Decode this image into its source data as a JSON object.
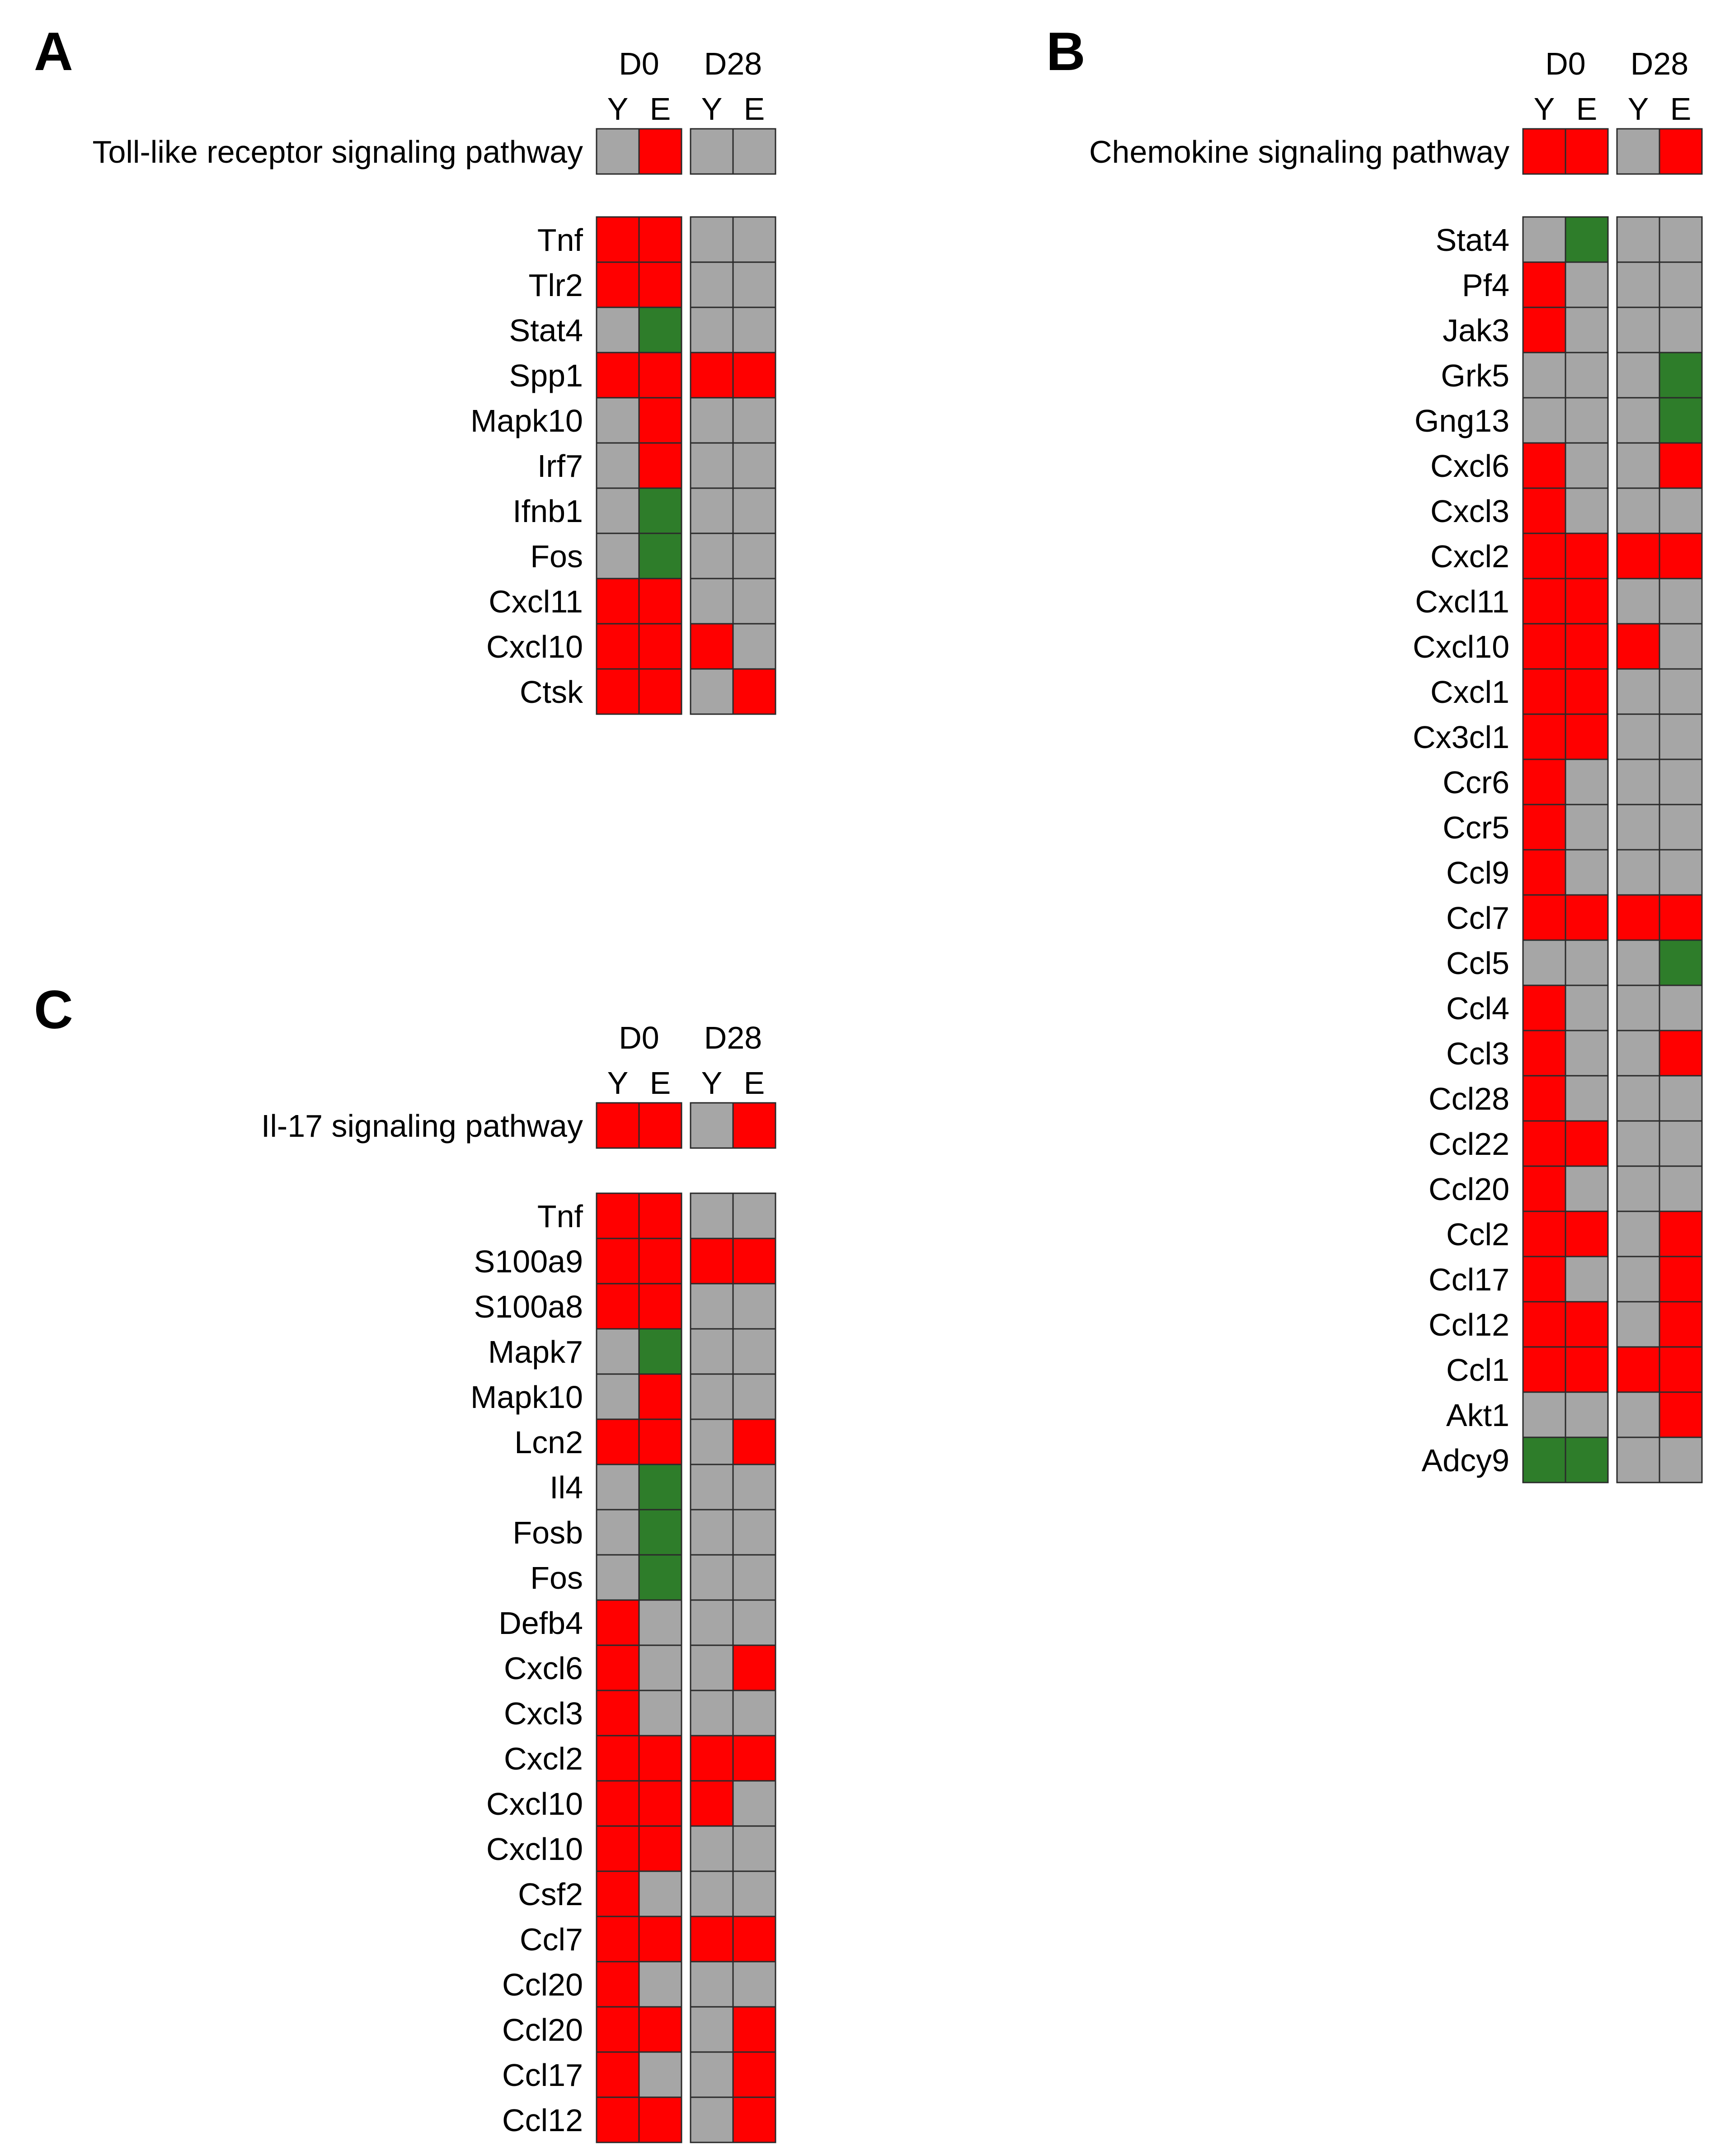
{
  "colors": {
    "up": "#ff0000",
    "down": "#2e7d2a",
    "none": "#a6a6a6",
    "border": "#2a2a2a"
  },
  "chart_data": [
    {
      "type": "heatmap",
      "panel": "A",
      "groups": [
        "D0",
        "D28"
      ],
      "columns": [
        "Y",
        "E"
      ],
      "pathway": {
        "name": "Toll-like  receptor signaling pathway",
        "values": [
          "none",
          "up",
          "none",
          "none"
        ]
      },
      "rows": [
        {
          "gene": "Tnf",
          "values": [
            "up",
            "up",
            "none",
            "none"
          ]
        },
        {
          "gene": "Tlr2",
          "values": [
            "up",
            "up",
            "none",
            "none"
          ]
        },
        {
          "gene": "Stat4",
          "values": [
            "none",
            "down",
            "none",
            "none"
          ]
        },
        {
          "gene": "Spp1",
          "values": [
            "up",
            "up",
            "up",
            "up"
          ]
        },
        {
          "gene": "Mapk10",
          "values": [
            "none",
            "up",
            "none",
            "none"
          ]
        },
        {
          "gene": "Irf7",
          "values": [
            "none",
            "up",
            "none",
            "none"
          ]
        },
        {
          "gene": "Ifnb1",
          "values": [
            "none",
            "down",
            "none",
            "none"
          ]
        },
        {
          "gene": "Fos",
          "values": [
            "none",
            "down",
            "none",
            "none"
          ]
        },
        {
          "gene": "Cxcl11",
          "values": [
            "up",
            "up",
            "none",
            "none"
          ]
        },
        {
          "gene": "Cxcl10",
          "values": [
            "up",
            "up",
            "up",
            "none"
          ]
        },
        {
          "gene": "Ctsk",
          "values": [
            "up",
            "up",
            "none",
            "up"
          ]
        }
      ]
    },
    {
      "type": "heatmap",
      "panel": "B",
      "groups": [
        "D0",
        "D28"
      ],
      "columns": [
        "Y",
        "E"
      ],
      "pathway": {
        "name": "Chemokine signaling pathway",
        "values": [
          "up",
          "up",
          "none",
          "up"
        ]
      },
      "rows": [
        {
          "gene": "Stat4",
          "values": [
            "none",
            "down",
            "none",
            "none"
          ]
        },
        {
          "gene": "Pf4",
          "values": [
            "up",
            "none",
            "none",
            "none"
          ]
        },
        {
          "gene": "Jak3",
          "values": [
            "up",
            "none",
            "none",
            "none"
          ]
        },
        {
          "gene": "Grk5",
          "values": [
            "none",
            "none",
            "none",
            "down"
          ]
        },
        {
          "gene": "Gng13",
          "values": [
            "none",
            "none",
            "none",
            "down"
          ]
        },
        {
          "gene": "Cxcl6",
          "values": [
            "up",
            "none",
            "none",
            "up"
          ]
        },
        {
          "gene": "Cxcl3",
          "values": [
            "up",
            "none",
            "none",
            "none"
          ]
        },
        {
          "gene": "Cxcl2",
          "values": [
            "up",
            "up",
            "up",
            "up"
          ]
        },
        {
          "gene": "Cxcl11",
          "values": [
            "up",
            "up",
            "none",
            "none"
          ]
        },
        {
          "gene": "Cxcl10",
          "values": [
            "up",
            "up",
            "up",
            "none"
          ]
        },
        {
          "gene": "Cxcl1",
          "values": [
            "up",
            "up",
            "none",
            "none"
          ]
        },
        {
          "gene": "Cx3cl1",
          "values": [
            "up",
            "up",
            "none",
            "none"
          ]
        },
        {
          "gene": "Ccr6",
          "values": [
            "up",
            "none",
            "none",
            "none"
          ]
        },
        {
          "gene": "Ccr5",
          "values": [
            "up",
            "none",
            "none",
            "none"
          ]
        },
        {
          "gene": "Ccl9",
          "values": [
            "up",
            "none",
            "none",
            "none"
          ]
        },
        {
          "gene": "Ccl7",
          "values": [
            "up",
            "up",
            "up",
            "up"
          ]
        },
        {
          "gene": "Ccl5",
          "values": [
            "none",
            "none",
            "none",
            "down"
          ]
        },
        {
          "gene": "Ccl4",
          "values": [
            "up",
            "none",
            "none",
            "none"
          ]
        },
        {
          "gene": "Ccl3",
          "values": [
            "up",
            "none",
            "none",
            "up"
          ]
        },
        {
          "gene": "Ccl28",
          "values": [
            "up",
            "none",
            "none",
            "none"
          ]
        },
        {
          "gene": "Ccl22",
          "values": [
            "up",
            "up",
            "none",
            "none"
          ]
        },
        {
          "gene": "Ccl20",
          "values": [
            "up",
            "none",
            "none",
            "none"
          ]
        },
        {
          "gene": "Ccl2",
          "values": [
            "up",
            "up",
            "none",
            "up"
          ]
        },
        {
          "gene": "Ccl17",
          "values": [
            "up",
            "none",
            "none",
            "up"
          ]
        },
        {
          "gene": "Ccl12",
          "values": [
            "up",
            "up",
            "none",
            "up"
          ]
        },
        {
          "gene": "Ccl1",
          "values": [
            "up",
            "up",
            "up",
            "up"
          ]
        },
        {
          "gene": "Akt1",
          "values": [
            "none",
            "none",
            "none",
            "up"
          ]
        },
        {
          "gene": "Adcy9",
          "values": [
            "down",
            "down",
            "none",
            "none"
          ]
        }
      ]
    },
    {
      "type": "heatmap",
      "panel": "C",
      "groups": [
        "D0",
        "D28"
      ],
      "columns": [
        "Y",
        "E"
      ],
      "pathway": {
        "name": "Il-17 signaling pathway",
        "values": [
          "up",
          "up",
          "none",
          "up"
        ]
      },
      "rows": [
        {
          "gene": "Tnf",
          "values": [
            "up",
            "up",
            "none",
            "none"
          ]
        },
        {
          "gene": "S100a9",
          "values": [
            "up",
            "up",
            "up",
            "up"
          ]
        },
        {
          "gene": "S100a8",
          "values": [
            "up",
            "up",
            "none",
            "none"
          ]
        },
        {
          "gene": "Mapk7",
          "values": [
            "none",
            "down",
            "none",
            "none"
          ]
        },
        {
          "gene": "Mapk10",
          "values": [
            "none",
            "up",
            "none",
            "none"
          ]
        },
        {
          "gene": "Lcn2",
          "values": [
            "up",
            "up",
            "none",
            "up"
          ]
        },
        {
          "gene": "Il4",
          "values": [
            "none",
            "down",
            "none",
            "none"
          ]
        },
        {
          "gene": "Fosb",
          "values": [
            "none",
            "down",
            "none",
            "none"
          ]
        },
        {
          "gene": "Fos",
          "values": [
            "none",
            "down",
            "none",
            "none"
          ]
        },
        {
          "gene": "Defb4",
          "values": [
            "up",
            "none",
            "none",
            "none"
          ]
        },
        {
          "gene": "Cxcl6",
          "values": [
            "up",
            "none",
            "none",
            "up"
          ]
        },
        {
          "gene": "Cxcl3",
          "values": [
            "up",
            "none",
            "none",
            "none"
          ]
        },
        {
          "gene": "Cxcl2",
          "values": [
            "up",
            "up",
            "up",
            "up"
          ]
        },
        {
          "gene": "Cxcl10",
          "values": [
            "up",
            "up",
            "up",
            "none"
          ]
        },
        {
          "gene": "Cxcl10",
          "values": [
            "up",
            "up",
            "none",
            "none"
          ]
        },
        {
          "gene": "Csf2",
          "values": [
            "up",
            "none",
            "none",
            "none"
          ]
        },
        {
          "gene": "Ccl7",
          "values": [
            "up",
            "up",
            "up",
            "up"
          ]
        },
        {
          "gene": "Ccl20",
          "values": [
            "up",
            "none",
            "none",
            "none"
          ]
        },
        {
          "gene": "Ccl20",
          "values": [
            "up",
            "up",
            "none",
            "up"
          ]
        },
        {
          "gene": "Ccl17",
          "values": [
            "up",
            "none",
            "none",
            "up"
          ]
        },
        {
          "gene": "Ccl12",
          "values": [
            "up",
            "up",
            "none",
            "up"
          ]
        }
      ]
    }
  ]
}
